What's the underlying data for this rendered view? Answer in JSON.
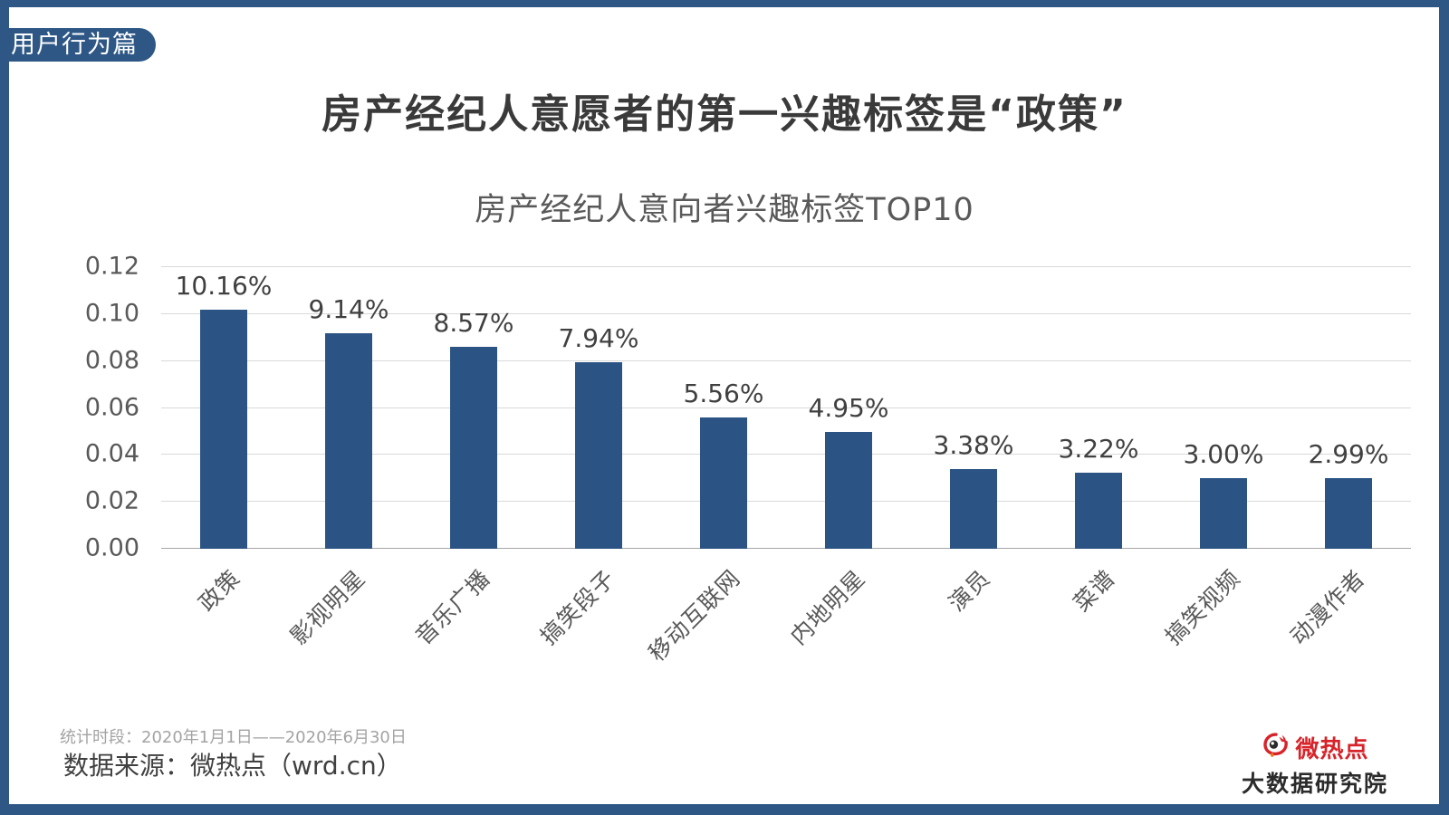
{
  "badge": {
    "label": "用户行为篇"
  },
  "title": "房产经纪人意愿者的第一兴趣标签是“政策”",
  "chart_data": {
    "type": "bar",
    "title": "房产经纪人意向者兴趣标签TOP10",
    "categories": [
      "政策",
      "影视明星",
      "音乐广播",
      "搞笑段子",
      "移动互联网",
      "内地明星",
      "演员",
      "菜谱",
      "搞笑视频",
      "动漫作者"
    ],
    "values": [
      0.1016,
      0.0914,
      0.0857,
      0.0794,
      0.0556,
      0.0495,
      0.0338,
      0.0322,
      0.03,
      0.0299
    ],
    "value_labels": [
      "10.16%",
      "9.14%",
      "8.57%",
      "7.94%",
      "5.56%",
      "4.95%",
      "3.38%",
      "3.22%",
      "3.00%",
      "2.99%"
    ],
    "y_ticks": [
      "0.12",
      "0.10",
      "0.08",
      "0.06",
      "0.04",
      "0.02",
      "0.00"
    ],
    "ylim": [
      0,
      0.12
    ],
    "grid": true,
    "legend": "none",
    "bar_color": "#2b5484"
  },
  "footer": {
    "period": "统计时段：2020年1月1日——2020年6月30日",
    "source": "数据来源：微热点（wrd.cn）"
  },
  "logo": {
    "icon": "weibo-eye-icon",
    "brand": "微热点",
    "subtitle": "大数据研究院",
    "brand_color": "#d7232a"
  },
  "frame": {
    "color": "#2e5786"
  }
}
